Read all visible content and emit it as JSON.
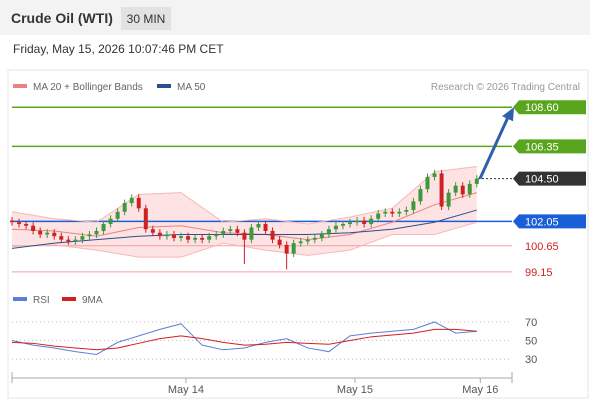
{
  "header": {
    "title": "Crude Oil (WTI)",
    "interval": "30 MIN",
    "timestamp": "Friday, May 15, 2026 10:07:46 PM CET"
  },
  "chart_data": [
    {
      "type": "candlestick",
      "source": "Research © 2026 Trading Central",
      "up_color": "#3c9a3c",
      "down_color": "#cc2222",
      "open": [
        102.1,
        102.0,
        101.9,
        101.8,
        101.5,
        101.3,
        101.4,
        101.2,
        101.0,
        100.9,
        101.0,
        101.2,
        101.3,
        101.5,
        101.9,
        102.2,
        102.6,
        103.1,
        103.4,
        102.8,
        101.6,
        101.4,
        101.2,
        101.3,
        101.1,
        101.2,
        101.0,
        101.1,
        101.0,
        101.2,
        101.3,
        101.5,
        101.6,
        101.4,
        101.0,
        101.7,
        101.9,
        101.5,
        101.0,
        100.7,
        100.2,
        100.8,
        100.9,
        101.0,
        101.1,
        101.3,
        101.6,
        101.8,
        101.9,
        102.0,
        102.1,
        101.9,
        102.2,
        102.5,
        102.6,
        102.5,
        102.6,
        102.7,
        103.2,
        103.9,
        104.6,
        104.8,
        102.9,
        103.7,
        104.1,
        103.6,
        104.2
      ],
      "high": [
        102.3,
        102.2,
        102.1,
        102.0,
        101.7,
        101.6,
        101.6,
        101.4,
        101.2,
        101.2,
        101.4,
        101.5,
        101.7,
        102.1,
        102.4,
        102.8,
        103.3,
        103.6,
        103.6,
        103.0,
        101.8,
        101.6,
        101.5,
        101.5,
        101.4,
        101.4,
        101.3,
        101.3,
        101.4,
        101.5,
        101.7,
        101.8,
        101.8,
        101.6,
        101.9,
        102.1,
        102.1,
        101.7,
        101.2,
        100.9,
        101.0,
        101.1,
        101.2,
        101.3,
        101.5,
        101.8,
        102.0,
        102.1,
        102.2,
        102.3,
        102.3,
        102.4,
        102.7,
        102.8,
        102.8,
        102.8,
        102.9,
        103.4,
        104.1,
        104.8,
        105.0,
        105.0,
        103.9,
        104.3,
        104.3,
        104.4,
        104.7
      ],
      "low": [
        101.8,
        101.7,
        101.6,
        101.3,
        101.1,
        101.1,
        101.0,
        100.8,
        100.7,
        100.7,
        100.8,
        101.0,
        101.1,
        101.3,
        101.7,
        102.0,
        102.4,
        102.9,
        102.6,
        101.4,
        101.2,
        101.0,
        101.0,
        100.9,
        100.9,
        100.8,
        100.8,
        100.8,
        100.8,
        101.0,
        101.1,
        101.3,
        101.2,
        99.6,
        100.8,
        101.5,
        101.3,
        100.8,
        100.5,
        99.3,
        100.0,
        100.6,
        100.7,
        100.8,
        100.9,
        101.1,
        101.4,
        101.6,
        101.7,
        101.8,
        101.7,
        101.7,
        102.0,
        102.3,
        102.3,
        102.3,
        102.4,
        102.5,
        103.0,
        103.7,
        104.4,
        102.7,
        102.7,
        103.5,
        103.4,
        103.4,
        104.0
      ],
      "close": [
        102.0,
        101.9,
        101.8,
        101.5,
        101.3,
        101.4,
        101.2,
        101.0,
        100.9,
        101.0,
        101.2,
        101.3,
        101.5,
        101.9,
        102.2,
        102.6,
        103.1,
        103.4,
        102.8,
        101.6,
        101.4,
        101.2,
        101.3,
        101.1,
        101.2,
        101.0,
        101.1,
        101.0,
        101.2,
        101.3,
        101.5,
        101.6,
        101.4,
        101.0,
        101.7,
        101.9,
        101.5,
        101.0,
        100.7,
        100.2,
        100.8,
        100.9,
        101.0,
        101.1,
        101.3,
        101.6,
        101.8,
        101.9,
        102.0,
        102.1,
        101.9,
        102.2,
        102.5,
        102.6,
        102.5,
        102.6,
        102.7,
        103.2,
        103.9,
        104.6,
        104.8,
        102.9,
        103.7,
        104.1,
        103.6,
        104.2,
        104.5
      ],
      "indicators": [
        {
          "name": "MA 20 + Bollinger Bands",
          "color": "#f08080",
          "band_color": "#fde3e3",
          "x": [
            0,
            6,
            12,
            18,
            24,
            30,
            36,
            42,
            48,
            54,
            60,
            66
          ],
          "values": [
            101.6,
            101.5,
            101.2,
            101.7,
            101.8,
            101.4,
            101.3,
            101.0,
            101.3,
            102.0,
            103.0,
            103.7
          ],
          "upper": [
            102.6,
            102.2,
            102.0,
            103.6,
            103.7,
            102.0,
            102.2,
            101.9,
            102.3,
            102.8,
            104.9,
            105.2
          ],
          "lower": [
            100.6,
            100.7,
            100.4,
            100.0,
            100.0,
            100.8,
            100.4,
            100.1,
            100.4,
            101.3,
            101.3,
            102.0
          ]
        },
        {
          "name": "MA 50",
          "color": "#2a4f8f",
          "x": [
            0,
            6,
            12,
            18,
            24,
            30,
            36,
            42,
            48,
            54,
            60,
            66
          ],
          "values": [
            100.5,
            100.8,
            101.0,
            101.2,
            101.3,
            101.3,
            101.3,
            101.3,
            101.4,
            101.6,
            102.0,
            102.7
          ]
        }
      ],
      "levels": [
        {
          "value": 108.6,
          "label": "108.60",
          "color": "#5aa51e",
          "style": "box"
        },
        {
          "value": 106.35,
          "label": "106.35",
          "color": "#5aa51e",
          "style": "box"
        },
        {
          "value": 104.5,
          "label": "104.50",
          "color": "#333333",
          "style": "current"
        },
        {
          "value": 102.05,
          "label": "102.05",
          "color": "#1a5fd6",
          "style": "box"
        },
        {
          "value": 100.65,
          "label": "100.65",
          "color": "#d02020",
          "style": "text"
        },
        {
          "value": 99.15,
          "label": "99.15",
          "color": "#d02020",
          "style": "text"
        }
      ],
      "ylim": [
        98.4,
        109.3
      ],
      "xlim": [
        0,
        71
      ],
      "xticks": [
        {
          "value": 24.7,
          "label": "May 14"
        },
        {
          "value": 48.7,
          "label": "May 15"
        },
        {
          "value": 66.5,
          "label": "May 16"
        }
      ]
    },
    {
      "type": "line",
      "series": [
        {
          "name": "RSI",
          "color": "#5b7fd6",
          "x": [
            0,
            3,
            6,
            9,
            12,
            15,
            18,
            21,
            24,
            27,
            30,
            33,
            36,
            39,
            42,
            45,
            48,
            51,
            54,
            57,
            60,
            63,
            66
          ],
          "values": [
            50,
            45,
            42,
            38,
            35,
            48,
            55,
            62,
            68,
            45,
            40,
            42,
            48,
            52,
            42,
            38,
            55,
            58,
            60,
            62,
            70,
            58,
            60
          ]
        },
        {
          "name": "9MA",
          "color": "#d02020",
          "x": [
            0,
            3,
            6,
            9,
            12,
            15,
            18,
            21,
            24,
            27,
            30,
            33,
            36,
            39,
            42,
            45,
            48,
            51,
            54,
            57,
            60,
            63,
            66
          ],
          "values": [
            48,
            47,
            44,
            42,
            40,
            42,
            47,
            52,
            55,
            52,
            48,
            45,
            46,
            48,
            47,
            46,
            50,
            54,
            56,
            58,
            62,
            62,
            60
          ]
        }
      ],
      "ylim": [
        15,
        98
      ],
      "yticks": [
        30,
        50,
        70
      ],
      "xlim": [
        0,
        71
      ]
    }
  ]
}
